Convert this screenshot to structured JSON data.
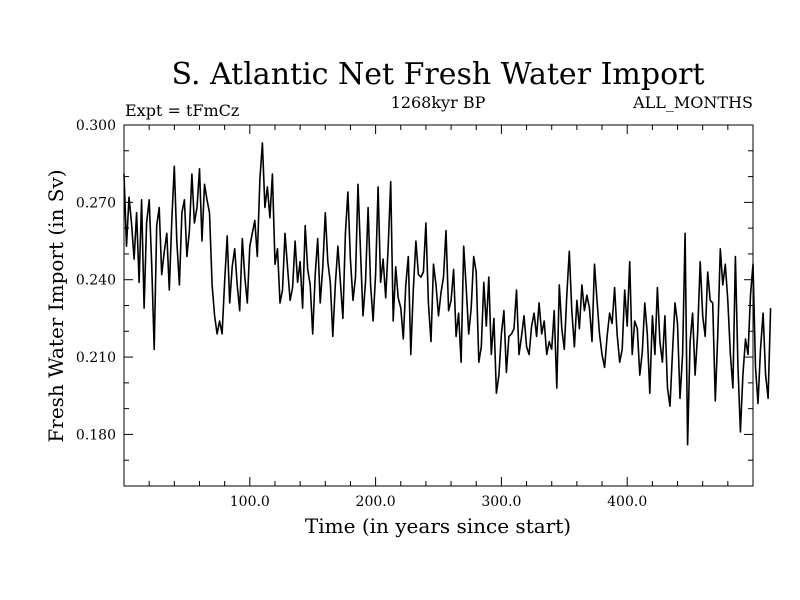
{
  "chart_data": {
    "type": "line",
    "title": "S. Atlantic Net Fresh Water Import",
    "subtitle_left": "Expt = tFmCz",
    "subtitle_center": "1268kyr BP",
    "subtitle_right": "ALL_MONTHS",
    "xlabel": "Time (in years since start)",
    "ylabel": "Fresh Water Import (in Sv)",
    "xlim": [
      0,
      500
    ],
    "ylim": [
      0.16,
      0.3
    ],
    "x_ticks": [
      100,
      200,
      300,
      400
    ],
    "x_tick_labels": [
      "100.0",
      "200.0",
      "300.0",
      "400.0"
    ],
    "y_ticks": [
      0.18,
      0.21,
      0.24,
      0.27,
      0.3
    ],
    "y_tick_labels": [
      "0.180",
      "0.210",
      "0.240",
      "0.270",
      "0.300"
    ],
    "series": [
      {
        "name": "Fresh Water Import",
        "x_start": 0,
        "x_step": 2,
        "values": [
          0.281,
          0.253,
          0.272,
          0.262,
          0.248,
          0.266,
          0.239,
          0.271,
          0.229,
          0.262,
          0.271,
          0.246,
          0.213,
          0.261,
          0.268,
          0.242,
          0.251,
          0.258,
          0.236,
          0.263,
          0.284,
          0.255,
          0.238,
          0.266,
          0.271,
          0.249,
          0.259,
          0.281,
          0.262,
          0.268,
          0.283,
          0.255,
          0.277,
          0.271,
          0.266,
          0.238,
          0.226,
          0.219,
          0.224,
          0.219,
          0.239,
          0.257,
          0.231,
          0.245,
          0.252,
          0.238,
          0.228,
          0.256,
          0.241,
          0.231,
          0.253,
          0.258,
          0.263,
          0.249,
          0.279,
          0.293,
          0.268,
          0.276,
          0.264,
          0.281,
          0.246,
          0.252,
          0.231,
          0.236,
          0.258,
          0.245,
          0.232,
          0.237,
          0.255,
          0.239,
          0.247,
          0.229,
          0.261,
          0.244,
          0.238,
          0.219,
          0.242,
          0.256,
          0.231,
          0.245,
          0.266,
          0.247,
          0.239,
          0.218,
          0.238,
          0.253,
          0.239,
          0.225,
          0.258,
          0.274,
          0.248,
          0.232,
          0.241,
          0.277,
          0.251,
          0.226,
          0.239,
          0.268,
          0.238,
          0.224,
          0.242,
          0.276,
          0.239,
          0.248,
          0.233,
          0.253,
          0.278,
          0.224,
          0.245,
          0.233,
          0.229,
          0.217,
          0.238,
          0.249,
          0.211,
          0.236,
          0.255,
          0.242,
          0.241,
          0.243,
          0.262,
          0.231,
          0.216,
          0.246,
          0.238,
          0.226,
          0.235,
          0.241,
          0.259,
          0.228,
          0.232,
          0.244,
          0.218,
          0.227,
          0.208,
          0.253,
          0.237,
          0.219,
          0.229,
          0.249,
          0.243,
          0.208,
          0.214,
          0.239,
          0.222,
          0.241,
          0.211,
          0.225,
          0.196,
          0.203,
          0.219,
          0.228,
          0.204,
          0.218,
          0.219,
          0.221,
          0.236,
          0.211,
          0.218,
          0.226,
          0.214,
          0.211,
          0.222,
          0.227,
          0.218,
          0.231,
          0.219,
          0.224,
          0.211,
          0.216,
          0.213,
          0.228,
          0.198,
          0.238,
          0.221,
          0.213,
          0.234,
          0.251,
          0.228,
          0.214,
          0.232,
          0.221,
          0.238,
          0.228,
          0.234,
          0.229,
          0.216,
          0.246,
          0.232,
          0.219,
          0.211,
          0.206,
          0.218,
          0.227,
          0.223,
          0.237,
          0.219,
          0.208,
          0.213,
          0.236,
          0.222,
          0.247,
          0.211,
          0.224,
          0.221,
          0.203,
          0.212,
          0.231,
          0.219,
          0.196,
          0.226,
          0.211,
          0.237,
          0.216,
          0.208,
          0.226,
          0.198,
          0.191,
          0.212,
          0.231,
          0.223,
          0.194,
          0.211,
          0.258,
          0.176,
          0.216,
          0.227,
          0.203,
          0.219,
          0.247,
          0.226,
          0.218,
          0.243,
          0.232,
          0.231,
          0.193,
          0.219,
          0.252,
          0.238,
          0.246,
          0.232,
          0.211,
          0.198,
          0.249,
          0.207,
          0.181,
          0.203,
          0.217,
          0.211,
          0.234,
          0.246,
          0.206,
          0.192,
          0.213,
          0.227,
          0.203,
          0.194,
          0.229
        ]
      }
    ]
  }
}
